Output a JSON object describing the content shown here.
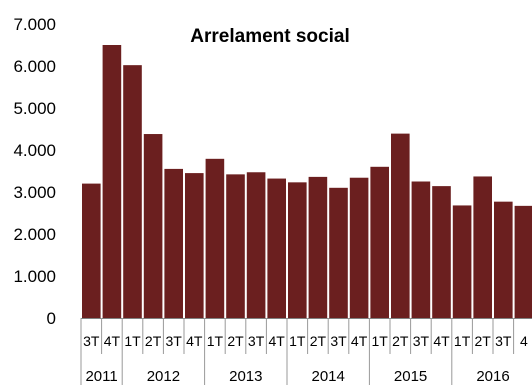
{
  "chart_data": {
    "type": "bar",
    "title": "Arrelament social",
    "xlabel": "",
    "ylabel": "",
    "ylim": [
      0,
      7000
    ],
    "yticks": [
      0,
      1000,
      2000,
      3000,
      4000,
      5000,
      6000,
      7000
    ],
    "ytick_labels": [
      "0",
      "1.000",
      "2.000",
      "3.000",
      "4.000",
      "5.000",
      "6.000",
      "7.000"
    ],
    "grid": false,
    "bar_color": "#6b1f1f",
    "categories": [
      "3T",
      "4T",
      "1T",
      "2T",
      "3T",
      "4T",
      "1T",
      "2T",
      "3T",
      "4T",
      "1T",
      "2T",
      "3T",
      "4T",
      "1T",
      "2T",
      "3T",
      "4T",
      "1T",
      "2T",
      "3T",
      "4"
    ],
    "values": [
      3200,
      6500,
      6020,
      4380,
      3550,
      3450,
      3790,
      3420,
      3470,
      3320,
      3230,
      3360,
      3100,
      3340,
      3600,
      4390,
      3250,
      3140,
      2680,
      3370,
      2770,
      2670
    ],
    "year_groups": [
      {
        "label": "2011",
        "start": 0,
        "count": 2
      },
      {
        "label": "2012",
        "start": 2,
        "count": 4
      },
      {
        "label": "2013",
        "start": 6,
        "count": 4
      },
      {
        "label": "2014",
        "start": 10,
        "count": 4
      },
      {
        "label": "2015",
        "start": 14,
        "count": 4
      },
      {
        "label": "2016",
        "start": 18,
        "count": 4
      }
    ]
  }
}
